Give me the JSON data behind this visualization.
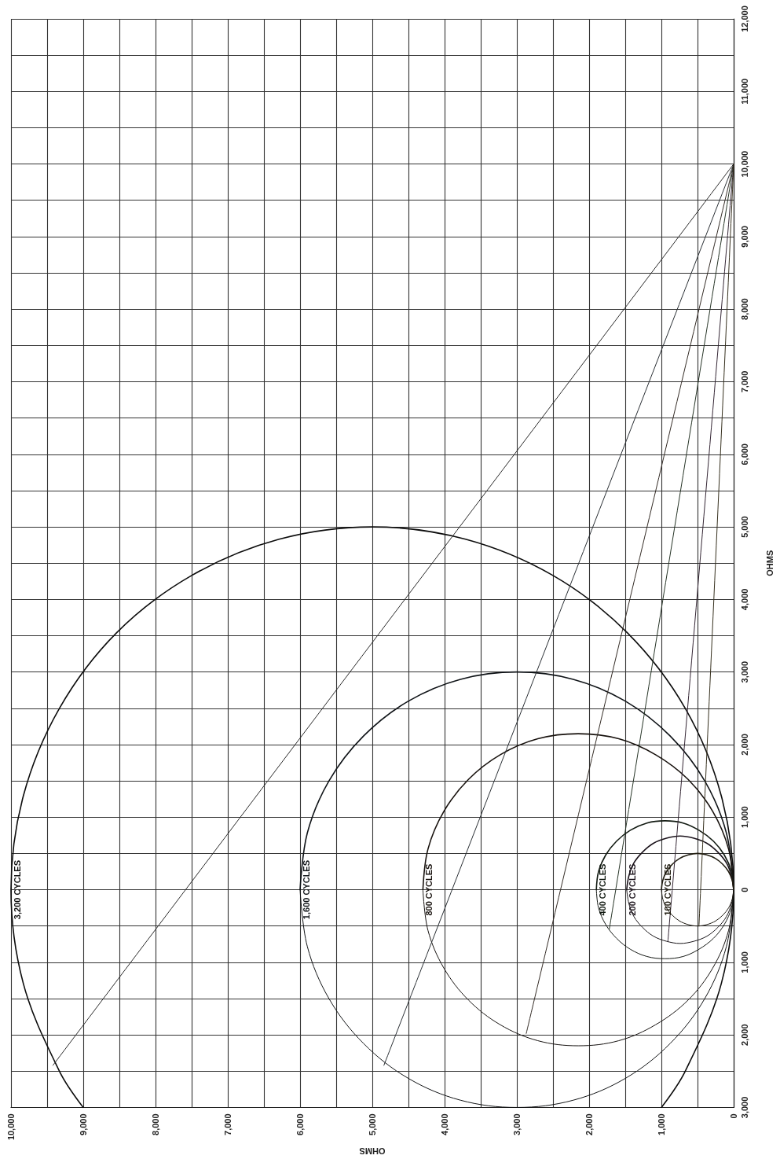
{
  "chart_data": {
    "type": "line",
    "xlabel": "OHMS",
    "ylabel": "OHMS",
    "xlim": [
      10000,
      0
    ],
    "xticks": [
      0,
      {
        "value": 500,
        "label": null
      },
      {
        "value": 1000,
        "label": "1,000"
      },
      {
        "value": 1500,
        "label": null
      },
      {
        "value": 2000,
        "label": "2,000"
      },
      {
        "value": 2500,
        "label": null
      },
      {
        "value": 3000,
        "label": "3,000"
      },
      {
        "value": 3500,
        "label": null
      },
      {
        "value": 4000,
        "label": "4,000"
      },
      {
        "value": 4500,
        "label": null
      },
      {
        "value": 5000,
        "label": "5,000"
      },
      {
        "value": 5500,
        "label": null
      },
      {
        "value": 6000,
        "label": "6,000"
      },
      {
        "value": 6500,
        "label": null
      },
      {
        "value": 7000,
        "label": "7,000"
      },
      {
        "value": 7500,
        "label": null
      },
      {
        "value": 8000,
        "label": "8,000"
      },
      {
        "value": 8500,
        "label": null
      },
      {
        "value": 9000,
        "label": "9,000"
      },
      {
        "value": 9500,
        "label": null
      },
      {
        "value": 10000,
        "label": "10,000"
      }
    ],
    "ylim": [
      -3000,
      12000
    ],
    "yticks": [
      {
        "value": -3000,
        "label": "3,000"
      },
      {
        "value": -2500,
        "label": null
      },
      {
        "value": -2000,
        "label": "2,000"
      },
      {
        "value": -1500,
        "label": null
      },
      {
        "value": -1000,
        "label": "1,000"
      },
      {
        "value": -500,
        "label": null
      },
      0,
      {
        "value": 500,
        "label": null
      },
      {
        "value": 1000,
        "label": "1,000"
      },
      {
        "value": 1500,
        "label": null
      },
      {
        "value": 2000,
        "label": "2,000"
      },
      {
        "value": 2500,
        "label": null
      },
      {
        "value": 3000,
        "label": "3,000"
      },
      {
        "value": 3500,
        "label": null
      },
      {
        "value": 4000,
        "label": "4,000"
      },
      {
        "value": 4500,
        "label": null
      },
      {
        "value": 5000,
        "label": "5,000"
      },
      {
        "value": 5500,
        "label": null
      },
      {
        "value": 6000,
        "label": "6,000"
      },
      {
        "value": 6500,
        "label": null
      },
      {
        "value": 7000,
        "label": "7,000"
      },
      {
        "value": 7500,
        "label": null
      },
      {
        "value": 8000,
        "label": "8,000"
      },
      {
        "value": 8500,
        "label": null
      },
      {
        "value": 9000,
        "label": "9,000"
      },
      {
        "value": 9500,
        "label": null
      },
      {
        "value": 10000,
        "label": "10,000"
      },
      {
        "value": 10500,
        "label": null
      },
      {
        "value": 11000,
        "label": "11,000"
      },
      {
        "value": 11500,
        "label": null
      },
      {
        "value": 12000,
        "label": "12,000"
      }
    ],
    "grid": true,
    "marker": "none",
    "line_style": "solid",
    "series": [
      {
        "name": "3,200 CYCLES",
        "color": "#0c0c0c",
        "x": [
          1000,
          670,
          170,
          0,
          170,
          670,
          1470,
          2500,
          3710,
          5000,
          6290,
          7500,
          8540,
          9330,
          9830,
          10000,
          9830,
          9330,
          9000
        ],
        "values": [
          -3000,
          -2500,
          -1290,
          0,
          1290,
          2500,
          3540,
          4330,
          4830,
          5000,
          4830,
          4330,
          3540,
          2500,
          1290,
          0,
          -1290,
          -2500,
          -3000
        ]
      },
      {
        "name": "1,600 CYCLES",
        "color": "#101418",
        "x": [
          0,
          100,
          400,
          880,
          1500,
          2220,
          3000,
          3780,
          4500,
          5120,
          5600,
          5900,
          6000
        ],
        "values": [
          0,
          780,
          1500,
          2120,
          2600,
          2900,
          3000,
          2900,
          2600,
          2120,
          1500,
          780,
          0
        ]
      },
      {
        "color": "#121416",
        "x": [
          6000,
          5900,
          5600,
          5120,
          4500,
          3780,
          3000,
          2220,
          1500,
          880,
          400,
          100,
          0
        ],
        "values": [
          0,
          -780,
          -1500,
          -2120,
          -2600,
          -2900,
          -3000,
          -2900,
          -2600,
          -2120,
          -1500,
          -780,
          0
        ]
      },
      {
        "name": "800 CYCLES",
        "color": "#18120e",
        "x": [
          0,
          70,
          290,
          630,
          1080,
          1590,
          2150,
          2710,
          3230,
          3670,
          4010,
          4230,
          4300
        ],
        "values": [
          0,
          560,
          1080,
          1520,
          1860,
          2080,
          2150,
          2080,
          1860,
          1520,
          1080,
          560,
          0
        ]
      },
      {
        "color": "#161210",
        "x": [
          4300,
          4230,
          4010,
          3670,
          3230,
          2710,
          2150,
          1590,
          1080,
          630,
          290,
          70,
          0
        ],
        "values": [
          0,
          -560,
          -1080,
          -1520,
          -1860,
          -2080,
          -2150,
          -2080,
          -1860,
          -1520,
          -1080,
          -560,
          0
        ]
      },
      {
        "name": "400 CYCLES",
        "color": "#121a12",
        "x": [
          0,
          30,
          130,
          280,
          480,
          700,
          950,
          1200,
          1430,
          1620,
          1770,
          1870,
          1900
        ],
        "values": [
          0,
          250,
          480,
          670,
          820,
          920,
          950,
          920,
          820,
          670,
          480,
          250,
          0
        ]
      },
      {
        "color": "#141814",
        "x": [
          1900,
          1870,
          1770,
          1620,
          1430,
          1200,
          950,
          700,
          480,
          280,
          130,
          30,
          0
        ],
        "values": [
          0,
          -250,
          -480,
          -670,
          -820,
          -920,
          -950,
          -920,
          -820,
          -670,
          -480,
          -250,
          0
        ]
      },
      {
        "name": "200 CYCLES",
        "color": "#1c141c",
        "x": [
          0,
          30,
          100,
          220,
          370,
          550,
          740,
          930,
          1110,
          1260,
          1380,
          1450,
          1480
        ],
        "values": [
          0,
          190,
          370,
          520,
          640,
          710,
          740,
          710,
          640,
          520,
          370,
          190,
          0
        ]
      },
      {
        "color": "#1a161a",
        "x": [
          1480,
          1450,
          1380,
          1260,
          1110,
          930,
          740,
          550,
          370,
          220,
          100,
          30,
          0
        ],
        "values": [
          0,
          -190,
          -370,
          -520,
          -640,
          -710,
          -740,
          -710,
          -640,
          -520,
          -370,
          -190,
          0
        ]
      },
      {
        "name": "100 CYCLES",
        "color": "#201c10",
        "x": [
          0,
          20,
          70,
          150,
          250,
          370,
          500,
          630,
          750,
          850,
          930,
          980,
          1000
        ],
        "values": [
          0,
          130,
          250,
          350,
          430,
          480,
          500,
          480,
          430,
          350,
          250,
          130,
          0
        ]
      },
      {
        "color": "#1e1a12",
        "x": [
          1000,
          980,
          930,
          850,
          750,
          630,
          500,
          370,
          250,
          150,
          70,
          20,
          0
        ],
        "values": [
          0,
          -130,
          -250,
          -350,
          -430,
          -480,
          -500,
          -480,
          -430,
          -350,
          -250,
          -130,
          0
        ]
      },
      {
        "color": "#2a2a2a",
        "x": [
          0,
          9420
        ],
        "values": [
          10000,
          -2420
        ]
      },
      {
        "color": "#2a2f34",
        "x": [
          0,
          4840
        ],
        "values": [
          10000,
          -2420
        ]
      },
      {
        "color": "#342c26",
        "x": [
          0,
          2870
        ],
        "values": [
          10000,
          -1980
        ]
      },
      {
        "color": "#263426",
        "x": [
          0,
          1720
        ],
        "values": [
          10000,
          -540
        ]
      },
      {
        "color": "#342634",
        "x": [
          0,
          910
        ],
        "values": [
          10000,
          -710
        ]
      },
      {
        "color": "#36301e",
        "x": [
          0,
          480
        ],
        "values": [
          10000,
          -500
        ]
      }
    ]
  }
}
